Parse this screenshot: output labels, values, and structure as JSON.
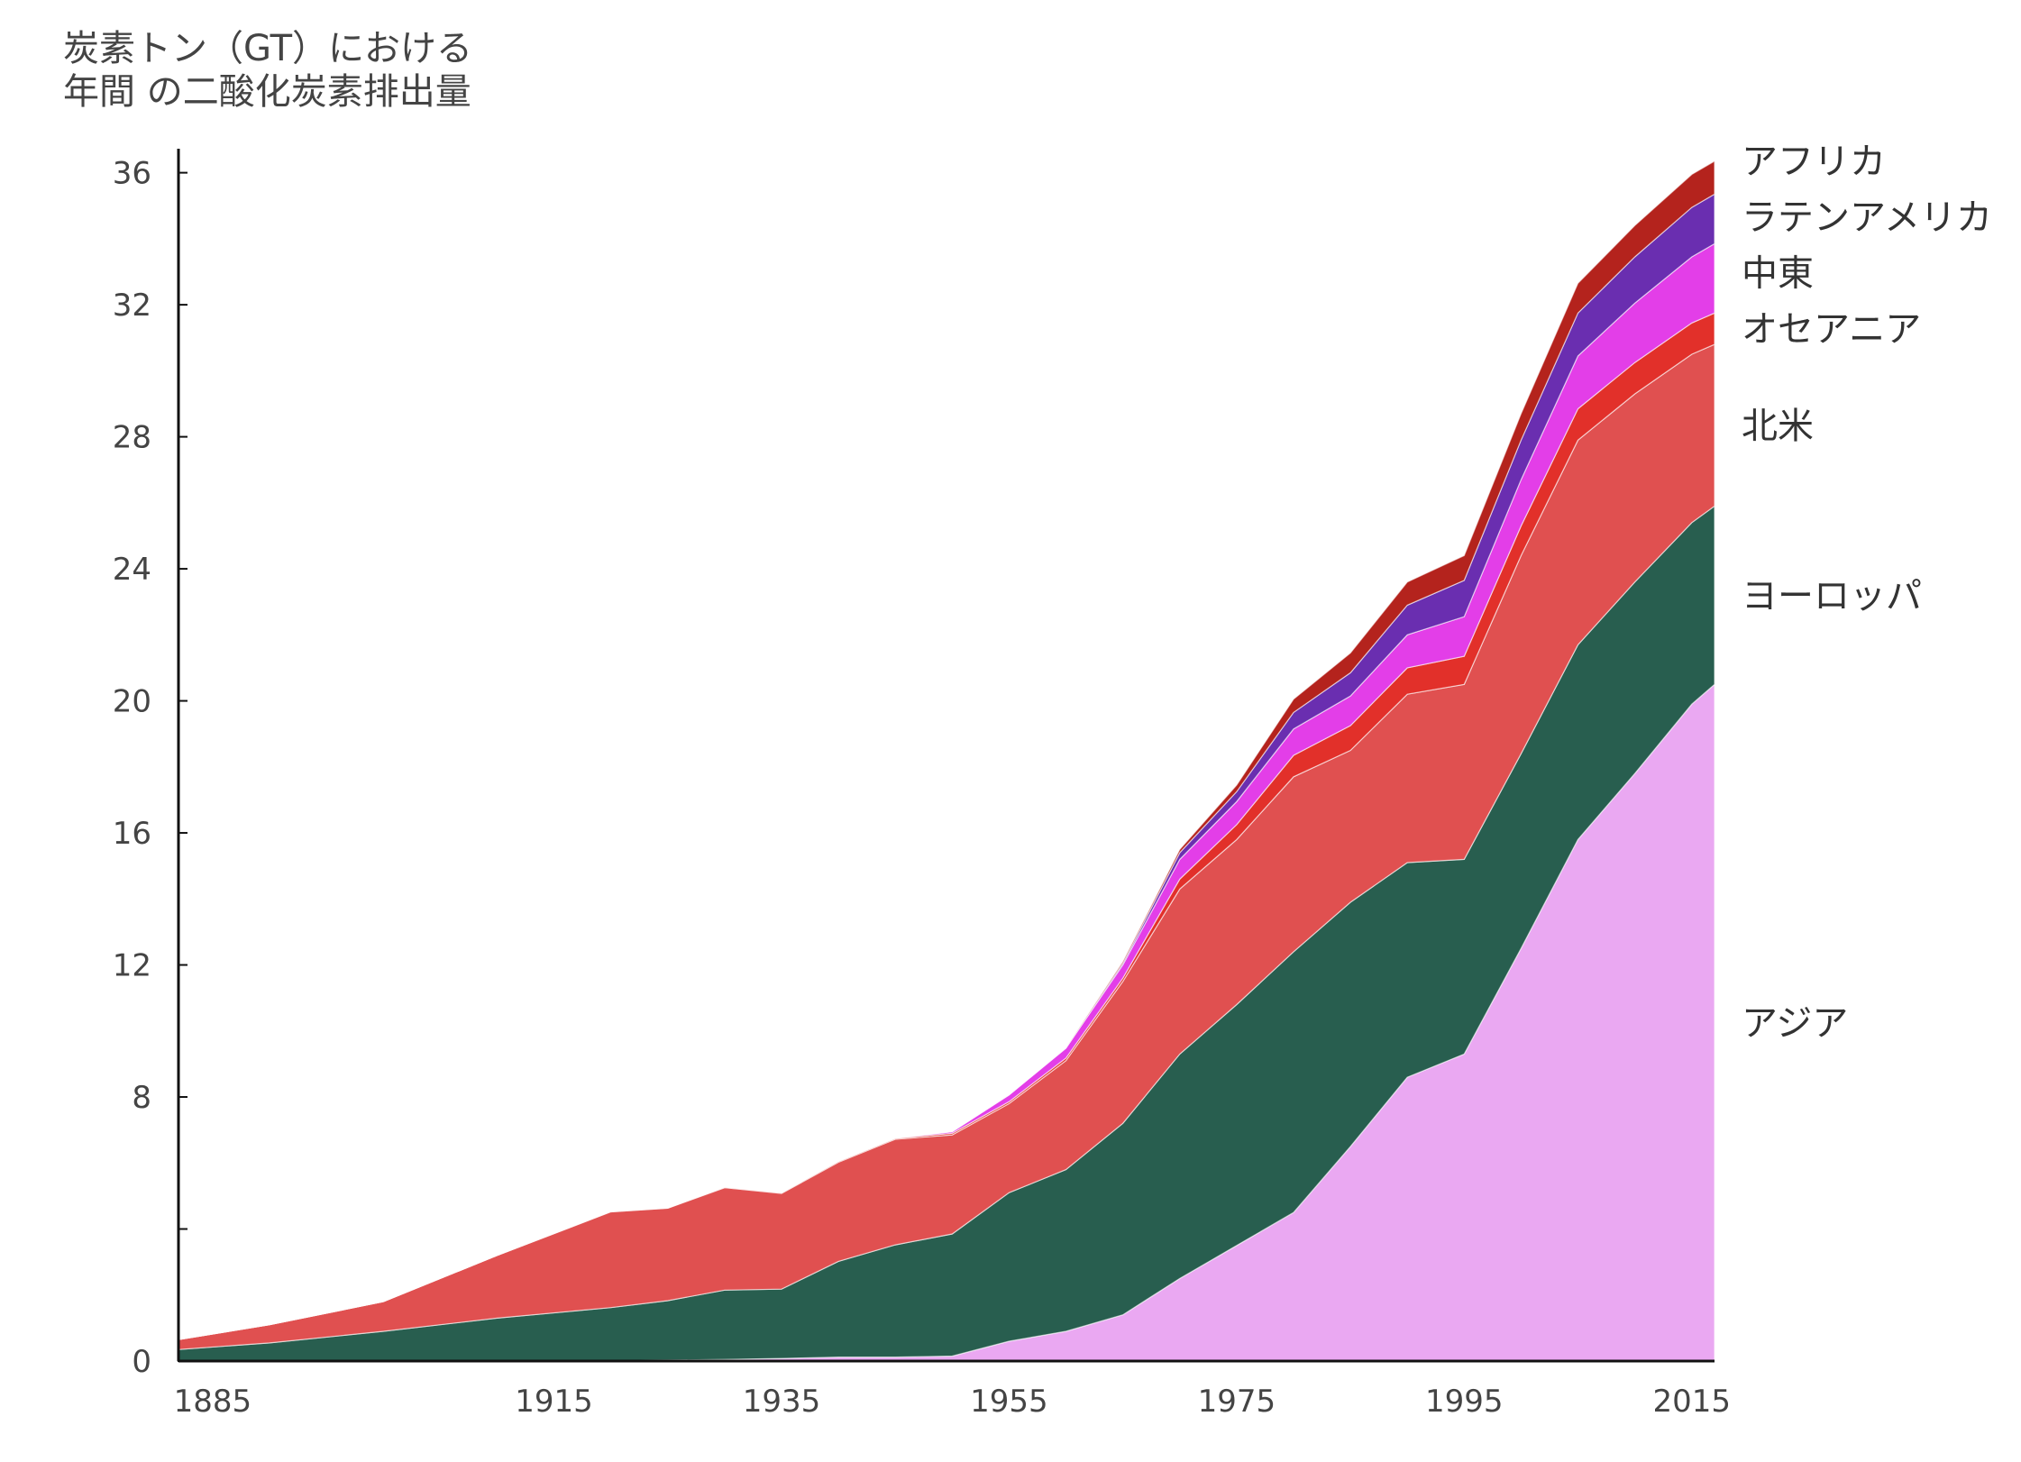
{
  "chart_data": {
    "type": "area",
    "stacked": true,
    "ylabel_lines": [
      "炭素トン（GT）における",
      "年間 の二酸化炭素排出量"
    ],
    "xlabel": "",
    "xlim": [
      1882,
      2017
    ],
    "ylim": [
      0,
      37
    ],
    "xticks": [
      1885,
      1915,
      1935,
      1955,
      1975,
      1995,
      2015
    ],
    "xtick_labels": [
      "1885",
      "1915",
      "1935",
      "1955",
      "1975",
      "1995",
      "2015"
    ],
    "yticks": [
      0,
      4,
      8,
      12,
      16,
      20,
      24,
      28,
      32,
      36
    ],
    "ytick_labels": [
      "0",
      "",
      "8",
      "12",
      "16",
      "20",
      "24",
      "28",
      "32",
      "36"
    ],
    "grid": false,
    "legend": "right-inline",
    "x": [
      1882,
      1890,
      1900,
      1910,
      1920,
      1925,
      1930,
      1935,
      1940,
      1945,
      1950,
      1955,
      1960,
      1965,
      1970,
      1975,
      1980,
      1985,
      1990,
      1995,
      2000,
      2005,
      2010,
      2015,
      2017
    ],
    "series": [
      {
        "name": "アジア",
        "color": "#eaa8f2",
        "values": [
          0,
          0,
          0,
          0,
          0.02,
          0.03,
          0.05,
          0.08,
          0.12,
          0.12,
          0.15,
          0.6,
          0.9,
          1.4,
          2.5,
          3.5,
          4.5,
          6.5,
          8.6,
          9.3,
          12.5,
          15.8,
          17.8,
          19.9,
          20.5
        ]
      },
      {
        "name": "ヨーロッパ",
        "color": "#285e4f",
        "values": [
          0.35,
          0.55,
          0.9,
          1.3,
          1.6,
          1.8,
          2.1,
          2.1,
          2.9,
          3.4,
          3.7,
          4.5,
          4.9,
          5.8,
          6.8,
          7.3,
          7.9,
          7.4,
          6.5,
          5.9,
          5.9,
          5.9,
          5.8,
          5.5,
          5.4
        ]
      },
      {
        "name": "北米",
        "color": "#e05050",
        "values": [
          0.3,
          0.55,
          0.9,
          1.9,
          2.9,
          2.8,
          3.1,
          2.9,
          3.0,
          3.2,
          3.0,
          2.7,
          3.3,
          4.3,
          5.0,
          5.0,
          5.3,
          4.6,
          5.1,
          5.3,
          6.0,
          6.2,
          5.7,
          5.1,
          4.9
        ]
      },
      {
        "name": "オセアニア",
        "color": "#e2302a",
        "values": [
          0,
          0,
          0,
          0,
          0.01,
          0.01,
          0.02,
          0.02,
          0.03,
          0.03,
          0.05,
          0.06,
          0.08,
          0.1,
          0.3,
          0.45,
          0.65,
          0.75,
          0.8,
          0.85,
          0.9,
          0.95,
          0.95,
          0.95,
          0.95
        ]
      },
      {
        "name": "中東",
        "color": "#e33ee8",
        "values": [
          0,
          0,
          0,
          0,
          0,
          0,
          0,
          0,
          0,
          0,
          0.05,
          0.2,
          0.3,
          0.4,
          0.6,
          0.7,
          0.8,
          0.9,
          1.0,
          1.2,
          1.4,
          1.6,
          1.8,
          2.0,
          2.1
        ]
      },
      {
        "name": "ラテンアメリカ",
        "color": "#6a2eb0",
        "values": [
          0,
          0,
          0,
          0,
          0,
          0,
          0,
          0,
          0,
          0,
          0,
          0,
          0,
          0.05,
          0.2,
          0.3,
          0.5,
          0.7,
          0.9,
          1.1,
          1.2,
          1.3,
          1.4,
          1.5,
          1.5
        ]
      },
      {
        "name": "アフリカ",
        "color": "#b4231d",
        "values": [
          0,
          0,
          0,
          0,
          0,
          0,
          0,
          0,
          0,
          0,
          0,
          0,
          0,
          0.05,
          0.1,
          0.2,
          0.4,
          0.6,
          0.7,
          0.75,
          0.8,
          0.9,
          0.95,
          1.0,
          1.0
        ]
      }
    ]
  }
}
